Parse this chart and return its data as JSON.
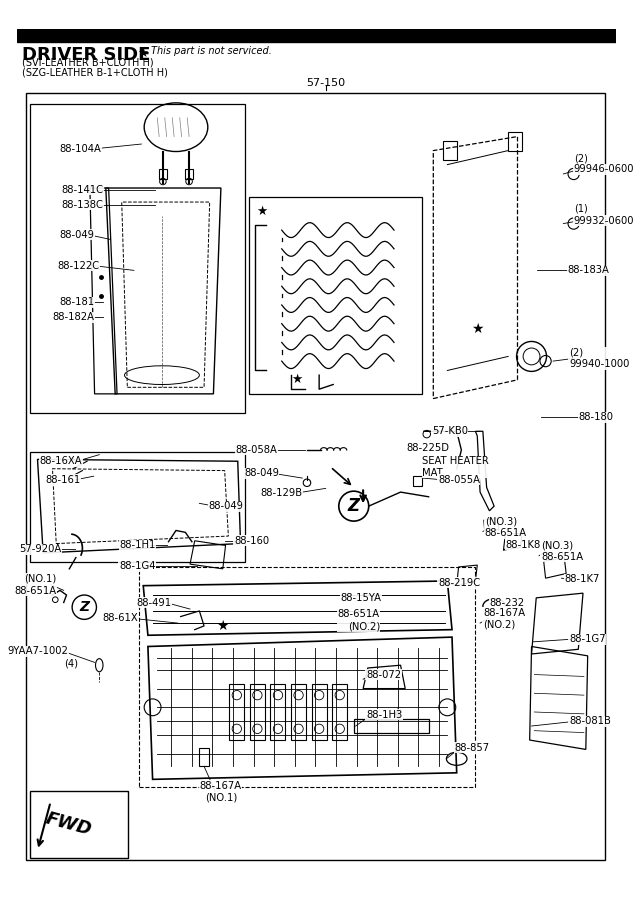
{
  "title_main": "DRIVER SIDE",
  "title_star": "★",
  "title_note": "This part is not serviced.",
  "subtitle1": "(SVI-LEATHER B+CLOTH H)",
  "subtitle2": "(SZG-LEATHER B-1+CLOTH H)",
  "part_number": "57-150",
  "bg_color": "#f5f5f5",
  "border_color": "#000000"
}
